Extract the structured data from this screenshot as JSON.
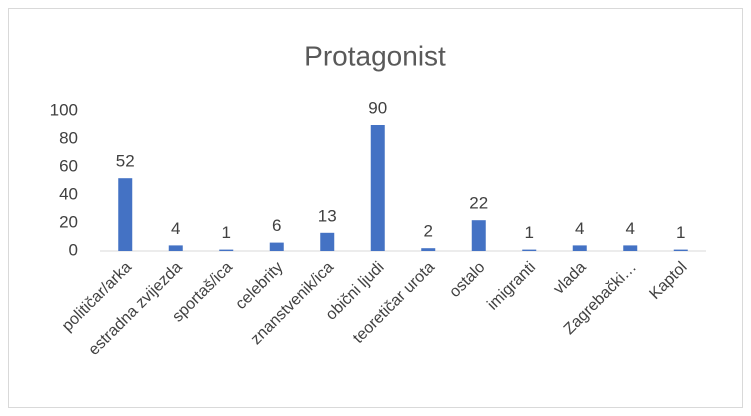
{
  "chart_data": {
    "type": "bar",
    "title": "Protagonist",
    "categories": [
      "političar/arka",
      "estradna zvijezda",
      "sportaš/ica",
      "celebrity",
      "znanstvenik/ica",
      "obični ljudi",
      "teoretičar urota",
      "ostalo",
      "imigranti",
      "vlada",
      "Zagrebački…",
      "Kaptol"
    ],
    "values": [
      52,
      4,
      1,
      6,
      13,
      90,
      2,
      22,
      1,
      4,
      4,
      1
    ],
    "color": "#4472c4",
    "ylim": [
      0,
      100
    ],
    "yticks": [
      0,
      20,
      40,
      60,
      80,
      100
    ],
    "grid": false
  }
}
